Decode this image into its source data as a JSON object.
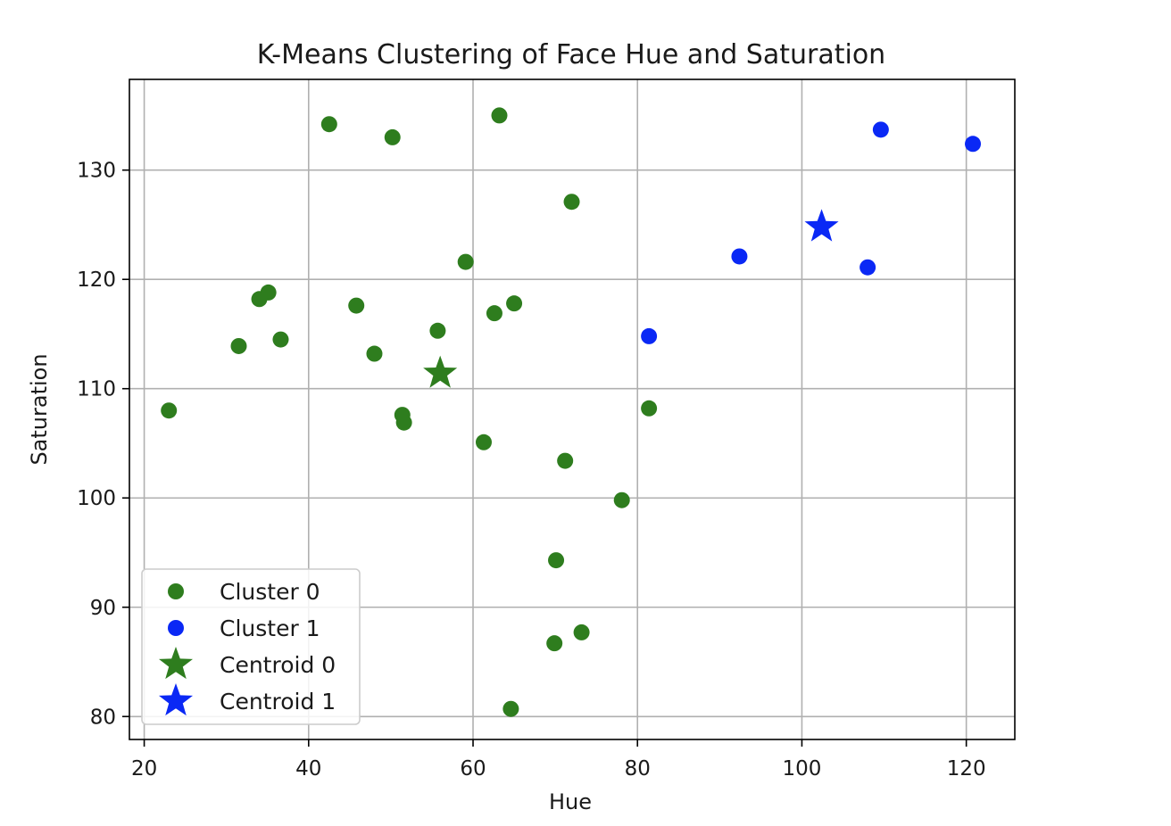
{
  "chart_data": {
    "type": "scatter",
    "title": "K-Means Clustering of Face Hue and Saturation",
    "xlabel": "Hue",
    "ylabel": "Saturation",
    "xlim": [
      18.2,
      125.9
    ],
    "ylim": [
      77.9,
      138.3
    ],
    "xticks": [
      20,
      40,
      60,
      80,
      100,
      120
    ],
    "yticks": [
      80,
      90,
      100,
      110,
      120,
      130
    ],
    "grid": true,
    "legend_position": "lower-left",
    "series": [
      {
        "name": "Cluster 0",
        "color": "#2e7d1e",
        "marker": "circle",
        "points": [
          [
            23.0,
            108.0
          ],
          [
            31.5,
            113.9
          ],
          [
            34.0,
            118.2
          ],
          [
            35.1,
            118.8
          ],
          [
            36.6,
            114.5
          ],
          [
            42.5,
            134.2
          ],
          [
            45.8,
            117.6
          ],
          [
            48.0,
            113.2
          ],
          [
            50.2,
            133.0
          ],
          [
            51.4,
            107.6
          ],
          [
            51.6,
            106.9
          ],
          [
            55.7,
            115.3
          ],
          [
            59.1,
            121.6
          ],
          [
            61.3,
            105.1
          ],
          [
            62.6,
            116.9
          ],
          [
            63.2,
            135.0
          ],
          [
            65.0,
            117.8
          ],
          [
            71.2,
            103.4
          ],
          [
            72.0,
            127.1
          ],
          [
            78.1,
            99.8
          ],
          [
            81.4,
            108.2
          ],
          [
            70.1,
            94.3
          ],
          [
            69.9,
            86.7
          ],
          [
            73.2,
            87.7
          ],
          [
            64.6,
            80.7
          ]
        ]
      },
      {
        "name": "Cluster 1",
        "color": "#0a28f5",
        "marker": "circle",
        "points": [
          [
            81.4,
            114.8
          ],
          [
            92.4,
            122.1
          ],
          [
            108.0,
            121.1
          ],
          [
            109.6,
            133.7
          ],
          [
            120.8,
            132.4
          ]
        ]
      },
      {
        "name": "Centroid 0",
        "color": "#2e7d1e",
        "marker": "star",
        "points": [
          [
            56.0,
            111.4
          ]
        ]
      },
      {
        "name": "Centroid 1",
        "color": "#0a28f5",
        "marker": "star",
        "points": [
          [
            102.4,
            124.8
          ]
        ]
      }
    ]
  }
}
